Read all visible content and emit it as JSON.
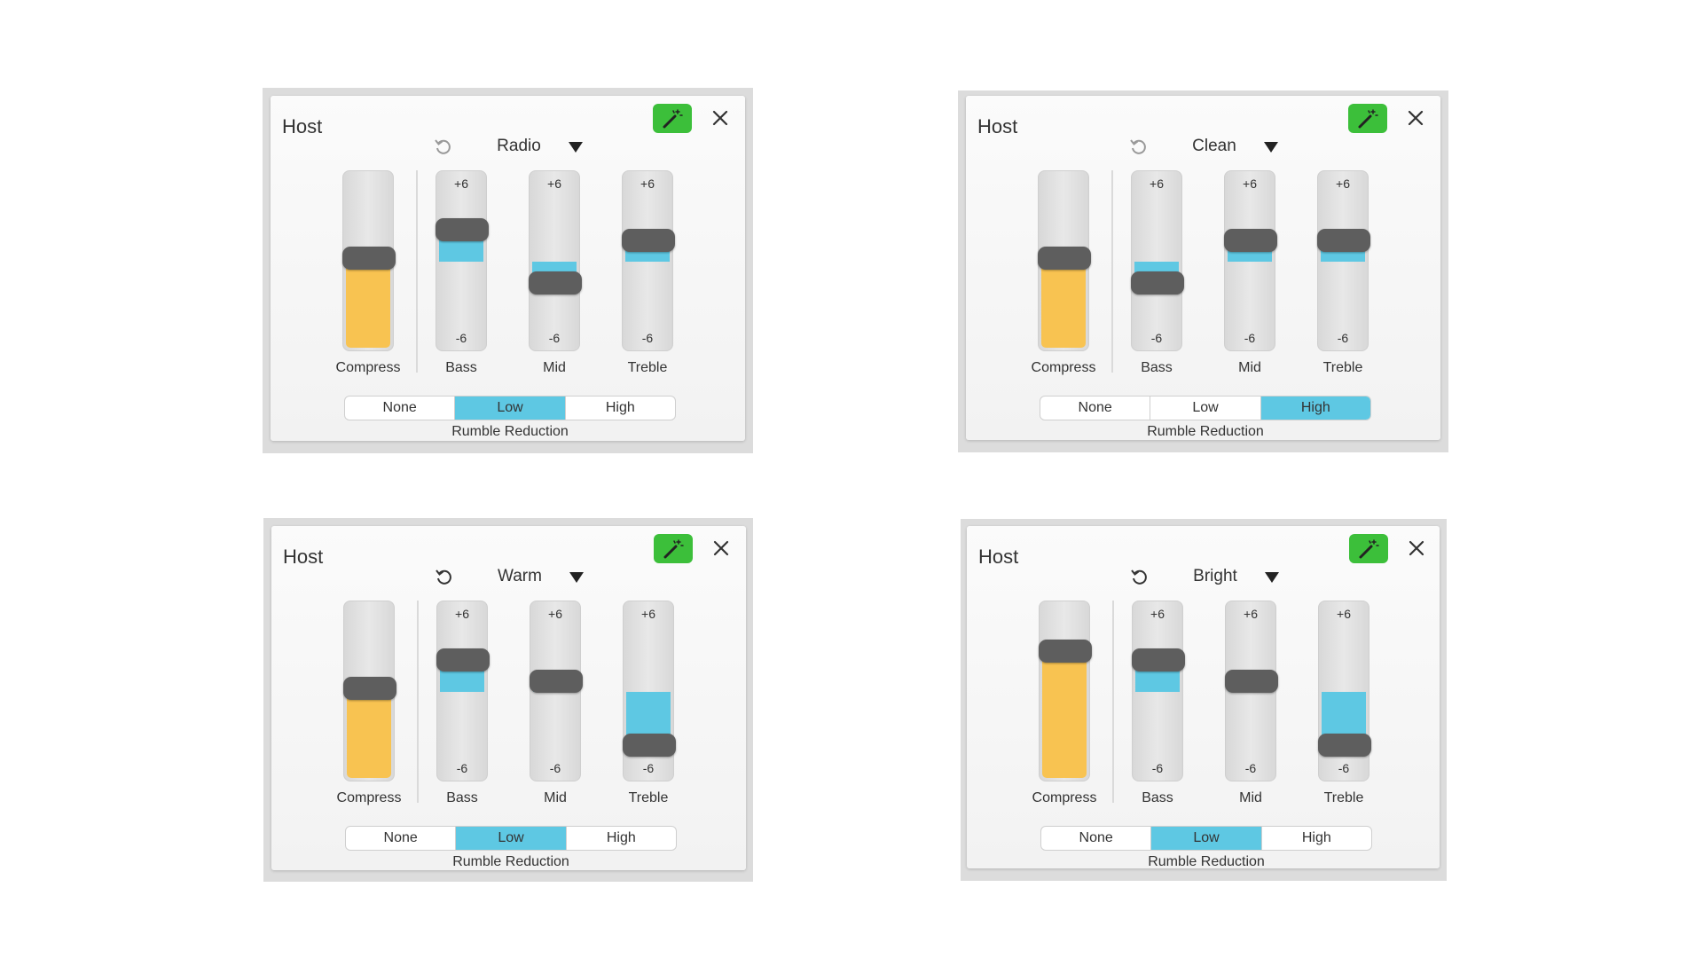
{
  "colors": {
    "accent_green": "#3cbf3a",
    "compress_fill": "#f8c351",
    "eq_fill": "#5ec8e3",
    "knob": "#5e5e5e"
  },
  "scale": {
    "top": "+6",
    "bottom": "-6",
    "min": -6,
    "max": 6
  },
  "labels": {
    "compress": "Compress",
    "bass": "Bass",
    "mid": "Mid",
    "treble": "Treble",
    "rumble_caption": "Rumble Reduction"
  },
  "rumble_options": [
    "None",
    "Low",
    "High"
  ],
  "icons": {
    "magic": "magic-wand-icon",
    "close": "close-icon",
    "reset": "reset-icon",
    "dropdown": "chevron-down-icon"
  },
  "panels": [
    {
      "title": "Host",
      "preset": "Radio",
      "compress": 0.52,
      "bass": 3,
      "mid": -2,
      "treble": 2,
      "rumble": "Low"
    },
    {
      "title": "Host",
      "preset": "Clean",
      "compress": 0.52,
      "bass": -2,
      "mid": 2,
      "treble": 2,
      "rumble": "High"
    },
    {
      "title": "Host",
      "preset": "Warm",
      "compress": 0.52,
      "bass": 3,
      "mid": 1,
      "treble": -5,
      "rumble": "Low"
    },
    {
      "title": "Host",
      "preset": "Bright",
      "compress": 0.73,
      "bass": 3,
      "mid": 1,
      "treble": -5,
      "rumble": "Low"
    }
  ]
}
